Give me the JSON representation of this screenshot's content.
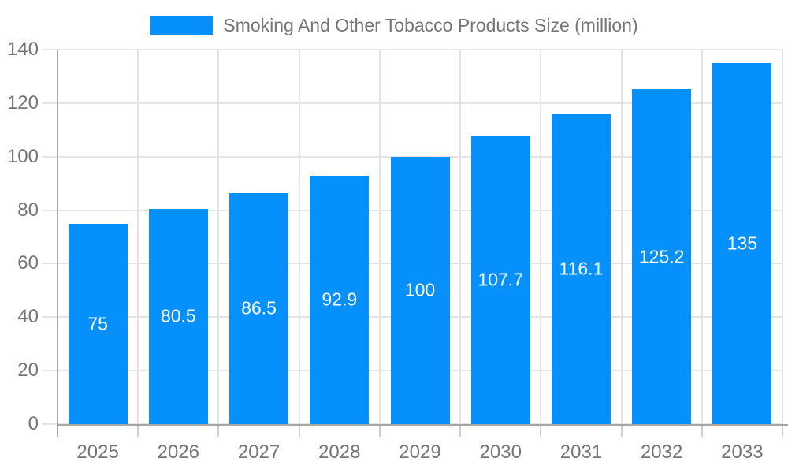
{
  "legend": {
    "label": "Smoking And Other Tobacco Products Size (million)"
  },
  "chart_data": {
    "type": "bar",
    "title": "Smoking And Other Tobacco Products Size (million)",
    "categories": [
      "2025",
      "2026",
      "2027",
      "2028",
      "2029",
      "2030",
      "2031",
      "2032",
      "2033"
    ],
    "values": [
      75,
      80.5,
      86.5,
      92.9,
      100,
      107.7,
      116.1,
      125.2,
      135
    ],
    "xlabel": "",
    "ylabel": "",
    "ylim": [
      0,
      140
    ],
    "yticks": [
      0,
      20,
      40,
      60,
      80,
      100,
      120,
      140
    ],
    "grid": true,
    "legend_position": "top",
    "value_label_position": "center",
    "colors": {
      "bar": "#0590fb",
      "grid": "#e4e4e4",
      "axis": "#a6a6a6",
      "tick": "#cfcfcf",
      "text": "#757575",
      "value_text": "#ffffff",
      "background": "#ffffff"
    }
  }
}
